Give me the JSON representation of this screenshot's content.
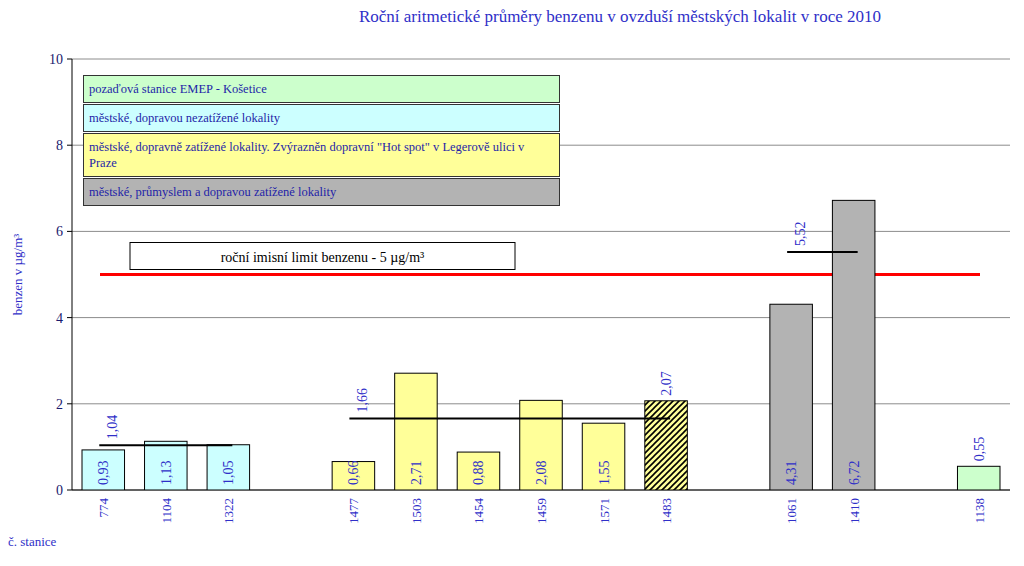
{
  "chart_data": {
    "type": "bar",
    "title": "Roční aritmetické průměry benzenu v ovzduší městských lokalit v roce 2010",
    "y_label": "benzen v µg/m³",
    "x_label": "č. stanice",
    "categories": [
      "774",
      "1104",
      "1322",
      null,
      "1477",
      "1503",
      "1454",
      "1459",
      "1571",
      "1483",
      null,
      "1061",
      "1410",
      null,
      "1138"
    ],
    "series": [
      {
        "name": "pozaďová stanice EMEP - Košetice",
        "color": "#ccffcc",
        "values": [
          null,
          null,
          null,
          null,
          null,
          null,
          null,
          null,
          null,
          null,
          null,
          null,
          null,
          null,
          0.55
        ],
        "value_labels": [
          null,
          null,
          null,
          null,
          null,
          null,
          null,
          null,
          null,
          null,
          null,
          null,
          null,
          null,
          "0,55"
        ]
      },
      {
        "name": "městské, dopravou nezatížené lokality",
        "color": "#ccffff",
        "values": [
          0.93,
          1.13,
          1.05,
          null,
          null,
          null,
          null,
          null,
          null,
          null,
          null,
          null,
          null,
          null,
          null
        ],
        "value_labels": [
          "0,93",
          "1,13",
          "1,05",
          null,
          null,
          null,
          null,
          null,
          null,
          null,
          null,
          null,
          null,
          null,
          null
        ],
        "mean": 1.04,
        "mean_label": "1,04"
      },
      {
        "name": "městské, dopravně zatížené lokality. Zvýrazněn dopravní \"Hot spot\" v Legerově ulici v Praze",
        "color": "#ffff99",
        "colors": [
          null,
          null,
          null,
          null,
          "#ffff99",
          "#ffff99",
          "#ffff99",
          "#ffff99",
          "#ffff99",
          "hatched",
          null,
          null,
          null,
          null,
          null
        ],
        "values": [
          null,
          null,
          null,
          null,
          0.66,
          2.71,
          0.88,
          2.08,
          1.55,
          2.07,
          null,
          null,
          null,
          null,
          null
        ],
        "value_labels": [
          null,
          null,
          null,
          null,
          "0,66",
          "2,71",
          "0,88",
          "2,08",
          "1,55",
          "2,07",
          null,
          null,
          null,
          null,
          null
        ],
        "mean": 1.66,
        "mean_label": "1,66"
      },
      {
        "name": "městské, průmyslem a dopravou zatížené lokality",
        "color": "#b3b3b3",
        "values": [
          null,
          null,
          null,
          null,
          null,
          null,
          null,
          null,
          null,
          null,
          null,
          4.31,
          6.72,
          null,
          null
        ],
        "value_labels": [
          null,
          null,
          null,
          null,
          null,
          null,
          null,
          null,
          null,
          null,
          null,
          "4,31",
          "6,72",
          null,
          null
        ],
        "mean": 5.52,
        "mean_label": "5,52"
      }
    ],
    "limit": {
      "value": 5,
      "label": "roční imisní limit benzenu - 5 µg/m³"
    },
    "ylim": [
      0,
      10
    ],
    "yticks": [
      0,
      2,
      4,
      6,
      8,
      10
    ],
    "grid": true,
    "data_labels": true
  }
}
